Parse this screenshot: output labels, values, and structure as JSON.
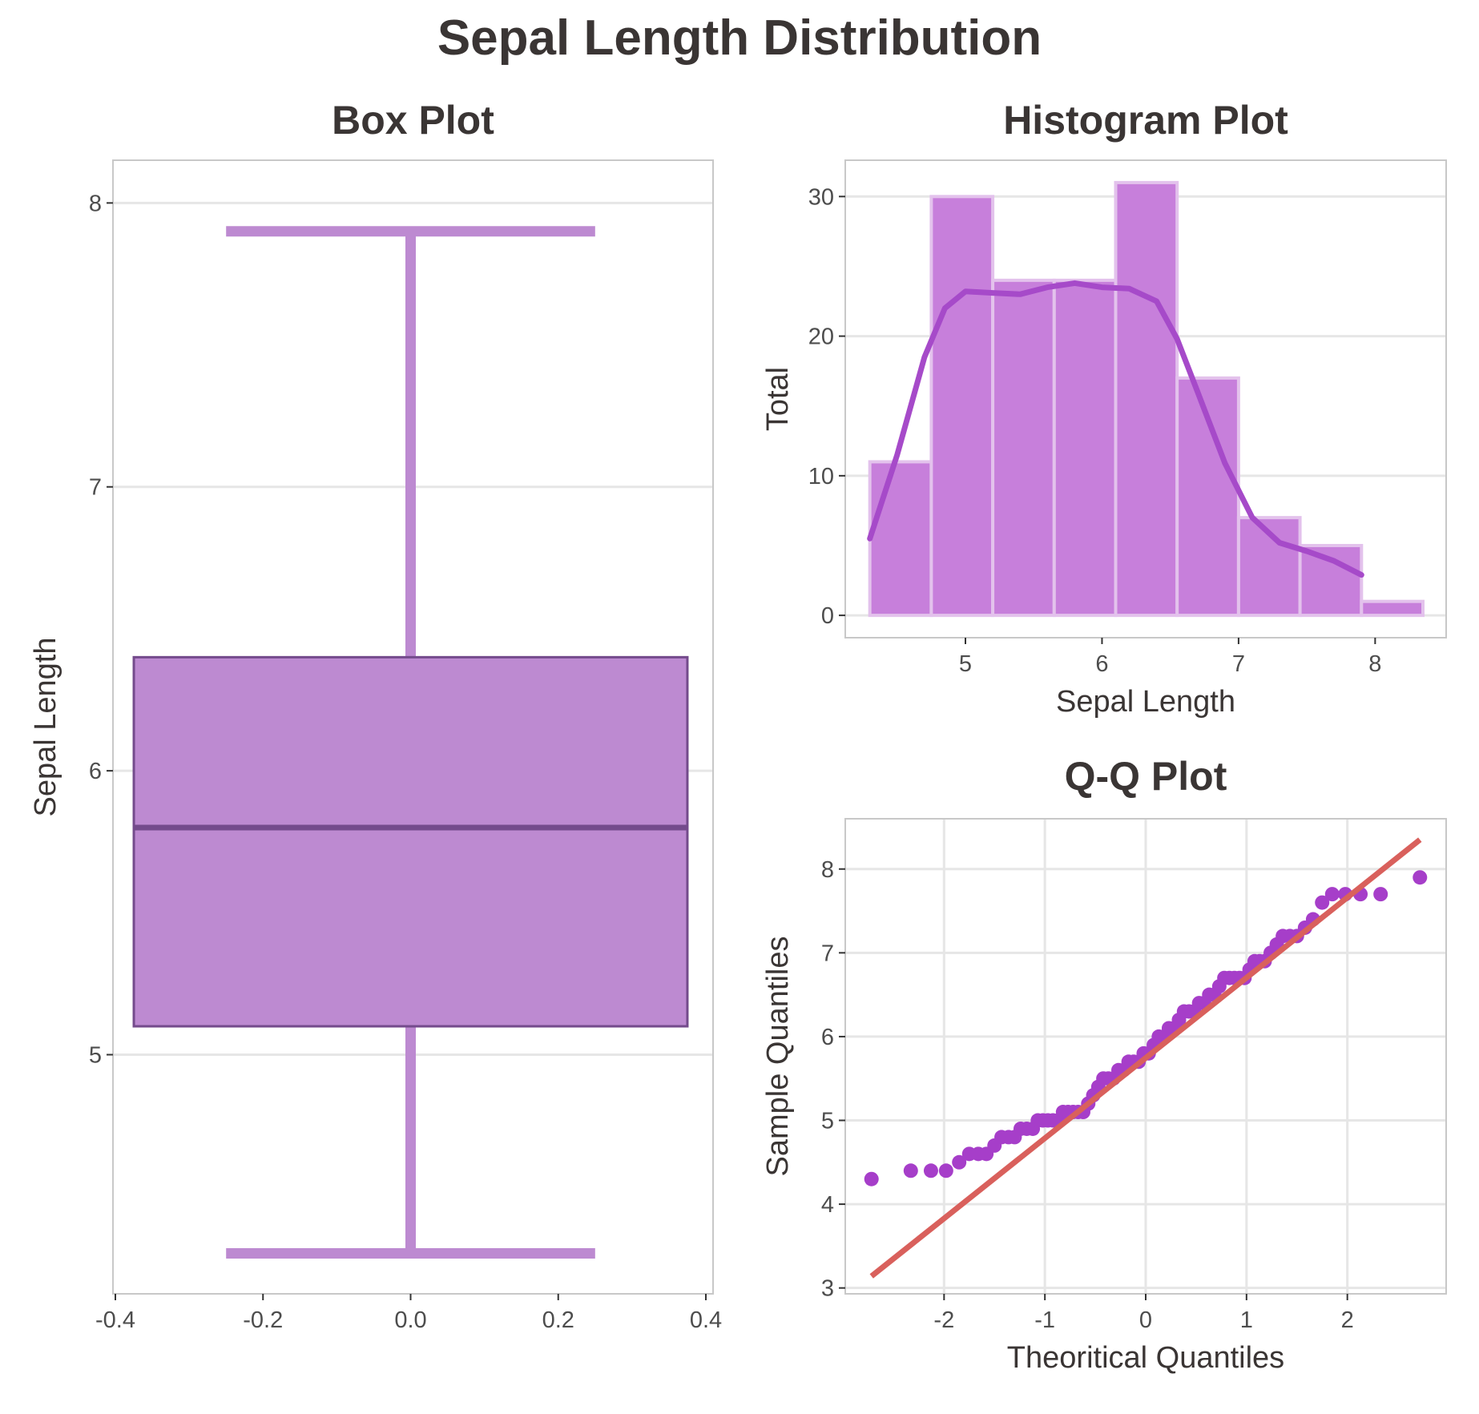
{
  "title": "Sepal Length Distribution",
  "colors": {
    "box_fill": "#bd8ad1",
    "box_edge": "#744b8c",
    "whisker": "#bd8ad1",
    "hist_fill": "#c77fdb",
    "hist_edge": "#e3c2ec",
    "kde": "#a64ac9",
    "qq_points": "#a63ec9",
    "qq_line": "#d9605c",
    "grid": "#e6e6e6",
    "frame": "#c8c8c8",
    "text": "#3a3534"
  },
  "chart_data": [
    {
      "type": "box",
      "title": "Box Plot",
      "xlabel": "",
      "ylabel": "Sepal Length",
      "xlim": [
        -0.4,
        0.4
      ],
      "ylim": [
        4.2,
        8.08
      ],
      "xticks": [
        "-0.4",
        "-0.2",
        "0.0",
        "0.2",
        "0.4"
      ],
      "yticks": [
        "5",
        "6",
        "7",
        "8"
      ],
      "grid": true,
      "box": {
        "position": 0.0,
        "width": 0.75,
        "min": 4.3,
        "q1": 5.1,
        "median": 5.8,
        "q3": 6.4,
        "max": 7.9,
        "cap_width": 0.5
      }
    },
    {
      "type": "histogram",
      "title": "Histogram Plot",
      "xlabel": "Sepal Length",
      "ylabel": "Total",
      "xlim": [
        4.12,
        8.52
      ],
      "ylim": [
        -1.6,
        32.6
      ],
      "xticks": [
        "5",
        "6",
        "7",
        "8"
      ],
      "yticks": [
        "0",
        "10",
        "20",
        "30"
      ],
      "grid": true,
      "bin_edges": [
        4.3,
        4.75,
        5.2,
        5.65,
        6.1,
        6.55,
        7.0,
        7.45,
        7.9,
        8.35
      ],
      "counts": [
        11,
        30,
        24,
        24,
        31,
        17,
        7,
        5,
        1
      ],
      "kde": {
        "x": [
          4.3,
          4.5,
          4.7,
          4.85,
          5.0,
          5.2,
          5.4,
          5.6,
          5.8,
          6.0,
          6.2,
          6.4,
          6.55,
          6.7,
          6.9,
          7.1,
          7.3,
          7.5,
          7.7,
          7.9
        ],
        "y": [
          5.5,
          11.5,
          18.5,
          22.0,
          23.2,
          23.1,
          23.0,
          23.5,
          23.8,
          23.5,
          23.4,
          22.5,
          19.8,
          16.0,
          10.9,
          7.0,
          5.2,
          4.6,
          3.9,
          2.9
        ]
      }
    },
    {
      "type": "scatter",
      "title": "Q-Q Plot",
      "xlabel": "Theoritical Quantiles",
      "ylabel": "Sample Quantiles",
      "xlim": [
        -2.98,
        2.98
      ],
      "ylim": [
        2.93,
        8.6
      ],
      "xticks": [
        "-2",
        "-1",
        "0",
        "1",
        "2"
      ],
      "yticks": [
        "3",
        "4",
        "5",
        "6",
        "7",
        "8"
      ],
      "grid": true,
      "points": {
        "x": [
          -2.72,
          -2.33,
          -2.13,
          -1.98,
          -1.85,
          -1.75,
          -1.66,
          -1.58,
          -1.5,
          -1.43,
          -1.36,
          -1.3,
          -1.24,
          -1.18,
          -1.12,
          -1.07,
          -1.02,
          -0.97,
          -0.92,
          -0.87,
          -0.82,
          -0.77,
          -0.72,
          -0.67,
          -0.62,
          -0.57,
          -0.52,
          -0.47,
          -0.42,
          -0.37,
          -0.32,
          -0.27,
          -0.22,
          -0.17,
          -0.12,
          -0.07,
          -0.02,
          0.03,
          0.08,
          0.13,
          0.18,
          0.23,
          0.28,
          0.33,
          0.38,
          0.43,
          0.48,
          0.53,
          0.58,
          0.63,
          0.68,
          0.73,
          0.78,
          0.83,
          0.88,
          0.93,
          0.98,
          1.03,
          1.08,
          1.13,
          1.18,
          1.24,
          1.3,
          1.36,
          1.43,
          1.5,
          1.58,
          1.66,
          1.75,
          1.85,
          1.98,
          2.13,
          2.33,
          2.72
        ],
        "y": [
          4.3,
          4.4,
          4.4,
          4.4,
          4.5,
          4.6,
          4.6,
          4.6,
          4.7,
          4.8,
          4.8,
          4.8,
          4.9,
          4.9,
          4.9,
          5.0,
          5.0,
          5.0,
          5.0,
          5.0,
          5.1,
          5.1,
          5.1,
          5.1,
          5.1,
          5.2,
          5.3,
          5.4,
          5.5,
          5.5,
          5.5,
          5.6,
          5.6,
          5.7,
          5.7,
          5.7,
          5.8,
          5.8,
          5.9,
          6.0,
          6.0,
          6.1,
          6.1,
          6.2,
          6.3,
          6.3,
          6.3,
          6.4,
          6.4,
          6.5,
          6.5,
          6.6,
          6.7,
          6.7,
          6.7,
          6.7,
          6.7,
          6.8,
          6.9,
          6.9,
          6.9,
          7.0,
          7.1,
          7.2,
          7.2,
          7.2,
          7.3,
          7.4,
          7.6,
          7.7,
          7.7,
          7.7,
          7.7,
          7.9
        ]
      },
      "reference_line": {
        "x": [
          -2.72,
          2.72
        ],
        "y": [
          3.14,
          8.35
        ]
      }
    }
  ]
}
